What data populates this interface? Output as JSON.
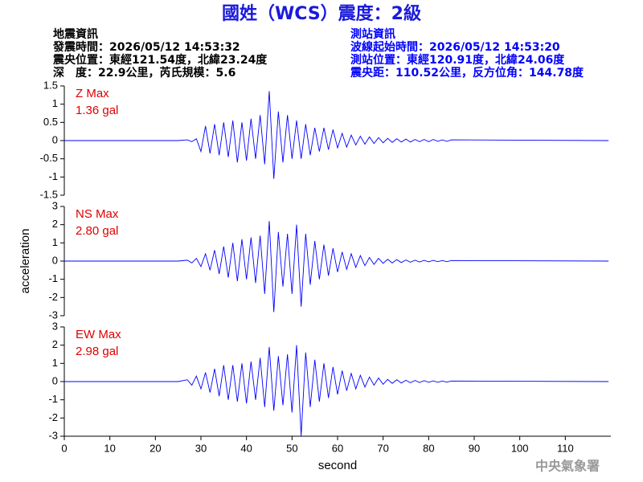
{
  "header": {
    "title": "國姓（WCS）震度：2級",
    "left": [
      "地震資訊",
      "發震時間：2026/05/12 14:53:32",
      "震央位置：東經121.54度，北緯23.24度",
      "深　度：22.9公里，芮氏規模：5.6"
    ],
    "right": [
      "測站資訊",
      "波線起始時間：2026/05/12 14:53:20",
      "測站位置：東經120.91度，北緯24.06度",
      "震央距：110.52公里，反方位角：144.78度"
    ],
    "footer": "中央氣象署"
  },
  "chart_data": [
    {
      "type": "line",
      "annotation": [
        "Z Max",
        "1.36 gal"
      ],
      "color": "#0000ff",
      "xlim": [
        0,
        120
      ],
      "ylim": [
        -1.5,
        1.5
      ],
      "yticks": [
        -1.5,
        -1,
        -0.5,
        0,
        0.5,
        1,
        1.5
      ],
      "x": [
        0,
        25,
        27,
        28,
        29,
        30,
        31,
        32,
        33,
        34,
        35,
        36,
        37,
        38,
        39,
        40,
        41,
        42,
        43,
        44,
        45,
        46,
        47,
        48,
        49,
        50,
        51,
        52,
        53,
        54,
        55,
        56,
        57,
        58,
        59,
        60,
        61,
        62,
        63,
        64,
        65,
        66,
        67,
        68,
        69,
        70,
        71,
        72,
        73,
        74,
        75,
        76,
        77,
        78,
        79,
        80,
        81,
        82,
        83,
        84,
        85,
        119.5
      ],
      "values": [
        0,
        0,
        0.02,
        -0.03,
        0.05,
        -0.3,
        0.4,
        -0.35,
        0.45,
        -0.4,
        0.5,
        -0.45,
        0.55,
        -0.6,
        0.5,
        -0.55,
        0.6,
        -0.5,
        0.7,
        -0.65,
        1.36,
        -1.05,
        0.8,
        -0.6,
        0.7,
        -0.5,
        0.55,
        -0.5,
        0.45,
        -0.4,
        0.35,
        -0.3,
        0.35,
        -0.25,
        0.3,
        -0.2,
        0.2,
        -0.18,
        0.15,
        -0.12,
        0.12,
        -0.1,
        0.1,
        -0.08,
        0.08,
        -0.06,
        0.06,
        -0.05,
        0.05,
        -0.04,
        0.04,
        -0.04,
        0.03,
        -0.03,
        0.03,
        -0.03,
        0.03,
        -0.02,
        0.02,
        -0.02,
        0.02,
        0
      ]
    },
    {
      "type": "line",
      "annotation": [
        "NS Max",
        "2.80 gal"
      ],
      "color": "#0000ff",
      "xlim": [
        0,
        120
      ],
      "ylim": [
        -3,
        3
      ],
      "yticks": [
        -3,
        -2,
        -1,
        0,
        1,
        2,
        3
      ],
      "ylabel": "acceleration",
      "x": [
        0,
        25,
        27,
        28,
        29,
        30,
        31,
        32,
        33,
        34,
        35,
        36,
        37,
        38,
        39,
        40,
        41,
        42,
        43,
        44,
        45,
        46,
        47,
        48,
        49,
        50,
        51,
        52,
        53,
        54,
        55,
        56,
        57,
        58,
        59,
        60,
        61,
        62,
        63,
        64,
        65,
        66,
        67,
        68,
        69,
        70,
        71,
        72,
        73,
        74,
        75,
        76,
        77,
        78,
        79,
        80,
        81,
        82,
        83,
        84,
        85,
        119.5
      ],
      "values": [
        0,
        0,
        0.05,
        -0.1,
        0.15,
        -0.3,
        0.4,
        -0.5,
        0.6,
        -0.7,
        0.8,
        -0.9,
        1.0,
        -1.1,
        1.2,
        -1.0,
        1.3,
        -1.2,
        1.4,
        -1.8,
        2.2,
        -2.8,
        1.6,
        -1.4,
        1.5,
        -1.8,
        2.0,
        -2.5,
        1.5,
        -1.3,
        1.1,
        -1.0,
        0.9,
        -0.8,
        0.7,
        -0.6,
        0.5,
        -0.45,
        0.4,
        -0.35,
        0.3,
        -0.25,
        0.2,
        -0.18,
        0.15,
        -0.12,
        0.1,
        -0.1,
        0.08,
        -0.08,
        0.06,
        -0.06,
        0.05,
        -0.05,
        0.04,
        -0.04,
        0.04,
        -0.03,
        0.03,
        -0.03,
        0.03,
        0
      ]
    },
    {
      "type": "line",
      "annotation": [
        "EW Max",
        "2.98 gal"
      ],
      "color": "#0000ff",
      "xlim": [
        0,
        120
      ],
      "ylim": [
        -3,
        3
      ],
      "yticks": [
        -3,
        -2,
        -1,
        0,
        1,
        2,
        3
      ],
      "xticks": [
        0,
        10,
        20,
        30,
        40,
        50,
        60,
        70,
        80,
        90,
        100,
        110
      ],
      "xlabel": "second",
      "x": [
        0,
        25,
        27,
        28,
        29,
        30,
        31,
        32,
        33,
        34,
        35,
        36,
        37,
        38,
        39,
        40,
        41,
        42,
        43,
        44,
        45,
        46,
        47,
        48,
        49,
        50,
        51,
        52,
        53,
        54,
        55,
        56,
        57,
        58,
        59,
        60,
        61,
        62,
        63,
        64,
        65,
        66,
        67,
        68,
        69,
        70,
        71,
        72,
        73,
        74,
        75,
        76,
        77,
        78,
        79,
        80,
        81,
        82,
        83,
        84,
        85,
        119.5
      ],
      "values": [
        0,
        0,
        0.1,
        -0.2,
        0.3,
        -0.4,
        0.5,
        -0.6,
        0.7,
        -0.8,
        0.9,
        -1.0,
        0.9,
        -1.1,
        1.0,
        -1.2,
        1.1,
        -1.0,
        1.3,
        -1.4,
        1.9,
        -1.6,
        1.4,
        -1.3,
        1.5,
        -1.7,
        2.0,
        -2.98,
        1.6,
        -1.4,
        1.2,
        -1.1,
        1.0,
        -0.9,
        0.8,
        -0.7,
        0.6,
        -0.5,
        0.45,
        -0.4,
        0.35,
        -0.3,
        0.25,
        -0.2,
        0.2,
        -0.15,
        0.12,
        -0.1,
        0.1,
        -0.08,
        0.07,
        -0.06,
        0.06,
        -0.05,
        0.05,
        -0.04,
        0.04,
        -0.04,
        0.03,
        -0.03,
        0.03,
        0
      ]
    }
  ]
}
